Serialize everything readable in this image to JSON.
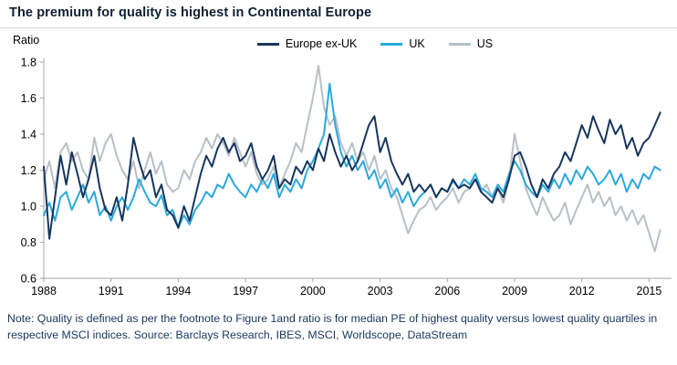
{
  "title": "The premium for quality is highest in Continental Europe",
  "y_axis_label": "Ratio",
  "note": "Note: Quality is defined as per the footnote to Figure 1and ratio is for median PE of highest quality versus lowest quality quartiles in respective MSCI indices. Source: Barclays Research, IBES, MSCI, Worldscope, DataStream",
  "colors": {
    "europe_ex_uk": "#17365d",
    "uk": "#29a8dd",
    "us": "#b8bfc6",
    "axis": "#a6a6a6",
    "title": "#0f1f33",
    "note": "#17365d"
  },
  "legend": [
    {
      "label": "Europe ex-UK",
      "color": "#17365d"
    },
    {
      "label": "UK",
      "color": "#29a8dd"
    },
    {
      "label": "US",
      "color": "#b8bfc6"
    }
  ],
  "chart_data": {
    "type": "line",
    "title": "The premium for quality is highest in Continental Europe",
    "ylabel": "Ratio",
    "xlim": [
      1988,
      2016
    ],
    "ylim": [
      0.6,
      1.8
    ],
    "x_ticks": [
      1988,
      1991,
      1994,
      1997,
      2000,
      2003,
      2006,
      2009,
      2012,
      2015
    ],
    "y_ticks": [
      0.6,
      0.8,
      1.0,
      1.2,
      1.4,
      1.6,
      1.8
    ],
    "grid": false,
    "legend_position": "top-center",
    "x_start": 1988,
    "x_step": 0.25,
    "series": [
      {
        "name": "US",
        "color": "#b8bfc6",
        "values": [
          1.15,
          1.25,
          1.1,
          1.3,
          1.35,
          1.25,
          1.3,
          1.2,
          1.15,
          1.38,
          1.25,
          1.35,
          1.4,
          1.28,
          1.2,
          1.15,
          1.25,
          1.1,
          1.2,
          1.3,
          1.18,
          1.25,
          1.12,
          1.08,
          1.1,
          1.2,
          1.15,
          1.25,
          1.3,
          1.38,
          1.32,
          1.4,
          1.35,
          1.28,
          1.38,
          1.3,
          1.22,
          1.3,
          1.18,
          1.12,
          1.15,
          1.22,
          1.1,
          1.18,
          1.25,
          1.35,
          1.3,
          1.45,
          1.6,
          1.78,
          1.55,
          1.45,
          1.5,
          1.35,
          1.28,
          1.35,
          1.25,
          1.3,
          1.2,
          1.28,
          1.15,
          1.2,
          1.1,
          1.05,
          0.95,
          0.85,
          0.92,
          0.98,
          1.0,
          1.05,
          0.98,
          1.02,
          1.05,
          1.1,
          1.02,
          1.08,
          1.1,
          1.15,
          1.08,
          1.12,
          1.05,
          1.1,
          1.02,
          1.15,
          1.4,
          1.25,
          1.1,
          1.02,
          0.95,
          1.05,
          0.98,
          0.92,
          0.95,
          1.02,
          0.9,
          0.98,
          1.05,
          1.12,
          1.02,
          1.08,
          1.0,
          1.05,
          0.95,
          1.0,
          0.92,
          0.98,
          0.9,
          0.95,
          0.85,
          0.75,
          0.87
        ]
      },
      {
        "name": "UK",
        "color": "#29a8dd",
        "values": [
          0.95,
          1.02,
          0.92,
          1.05,
          1.08,
          0.98,
          1.05,
          1.12,
          1.02,
          1.08,
          0.95,
          1.0,
          0.92,
          1.0,
          1.05,
          0.98,
          1.05,
          1.15,
          1.08,
          1.02,
          1.0,
          1.06,
          0.95,
          0.98,
          0.88,
          0.95,
          0.9,
          0.98,
          1.02,
          1.08,
          1.05,
          1.12,
          1.1,
          1.18,
          1.12,
          1.08,
          1.05,
          1.12,
          1.08,
          1.15,
          1.1,
          1.18,
          1.05,
          1.12,
          1.08,
          1.15,
          1.1,
          1.2,
          1.25,
          1.32,
          1.4,
          1.68,
          1.45,
          1.3,
          1.22,
          1.28,
          1.2,
          1.25,
          1.15,
          1.2,
          1.1,
          1.15,
          1.05,
          1.1,
          1.02,
          1.08,
          1.0,
          1.05,
          1.08,
          1.12,
          1.05,
          1.1,
          1.08,
          1.14,
          1.1,
          1.15,
          1.12,
          1.18,
          1.1,
          1.08,
          1.05,
          1.12,
          1.08,
          1.18,
          1.25,
          1.2,
          1.12,
          1.08,
          1.05,
          1.12,
          1.08,
          1.15,
          1.1,
          1.18,
          1.12,
          1.2,
          1.15,
          1.22,
          1.18,
          1.12,
          1.15,
          1.2,
          1.12,
          1.18,
          1.08,
          1.15,
          1.1,
          1.18,
          1.15,
          1.22,
          1.2
        ]
      },
      {
        "name": "Europe ex-UK",
        "color": "#17365d",
        "values": [
          1.22,
          0.82,
          1.05,
          1.28,
          1.12,
          1.3,
          1.18,
          1.05,
          1.15,
          1.28,
          1.1,
          0.98,
          0.95,
          1.05,
          0.92,
          1.12,
          1.38,
          1.25,
          1.15,
          1.2,
          1.05,
          1.12,
          0.98,
          0.95,
          0.88,
          1.0,
          0.92,
          1.05,
          1.18,
          1.28,
          1.22,
          1.32,
          1.38,
          1.3,
          1.35,
          1.25,
          1.28,
          1.35,
          1.22,
          1.15,
          1.2,
          1.28,
          1.1,
          1.15,
          1.12,
          1.22,
          1.18,
          1.25,
          1.2,
          1.32,
          1.25,
          1.4,
          1.3,
          1.22,
          1.28,
          1.2,
          1.25,
          1.35,
          1.45,
          1.5,
          1.3,
          1.38,
          1.25,
          1.18,
          1.12,
          1.18,
          1.08,
          1.12,
          1.08,
          1.12,
          1.05,
          1.1,
          1.08,
          1.15,
          1.1,
          1.12,
          1.1,
          1.15,
          1.08,
          1.05,
          1.02,
          1.1,
          1.05,
          1.15,
          1.28,
          1.3,
          1.22,
          1.12,
          1.05,
          1.15,
          1.1,
          1.18,
          1.22,
          1.3,
          1.25,
          1.35,
          1.45,
          1.38,
          1.5,
          1.42,
          1.35,
          1.48,
          1.4,
          1.45,
          1.32,
          1.38,
          1.28,
          1.35,
          1.38,
          1.45,
          1.52
        ]
      }
    ]
  }
}
